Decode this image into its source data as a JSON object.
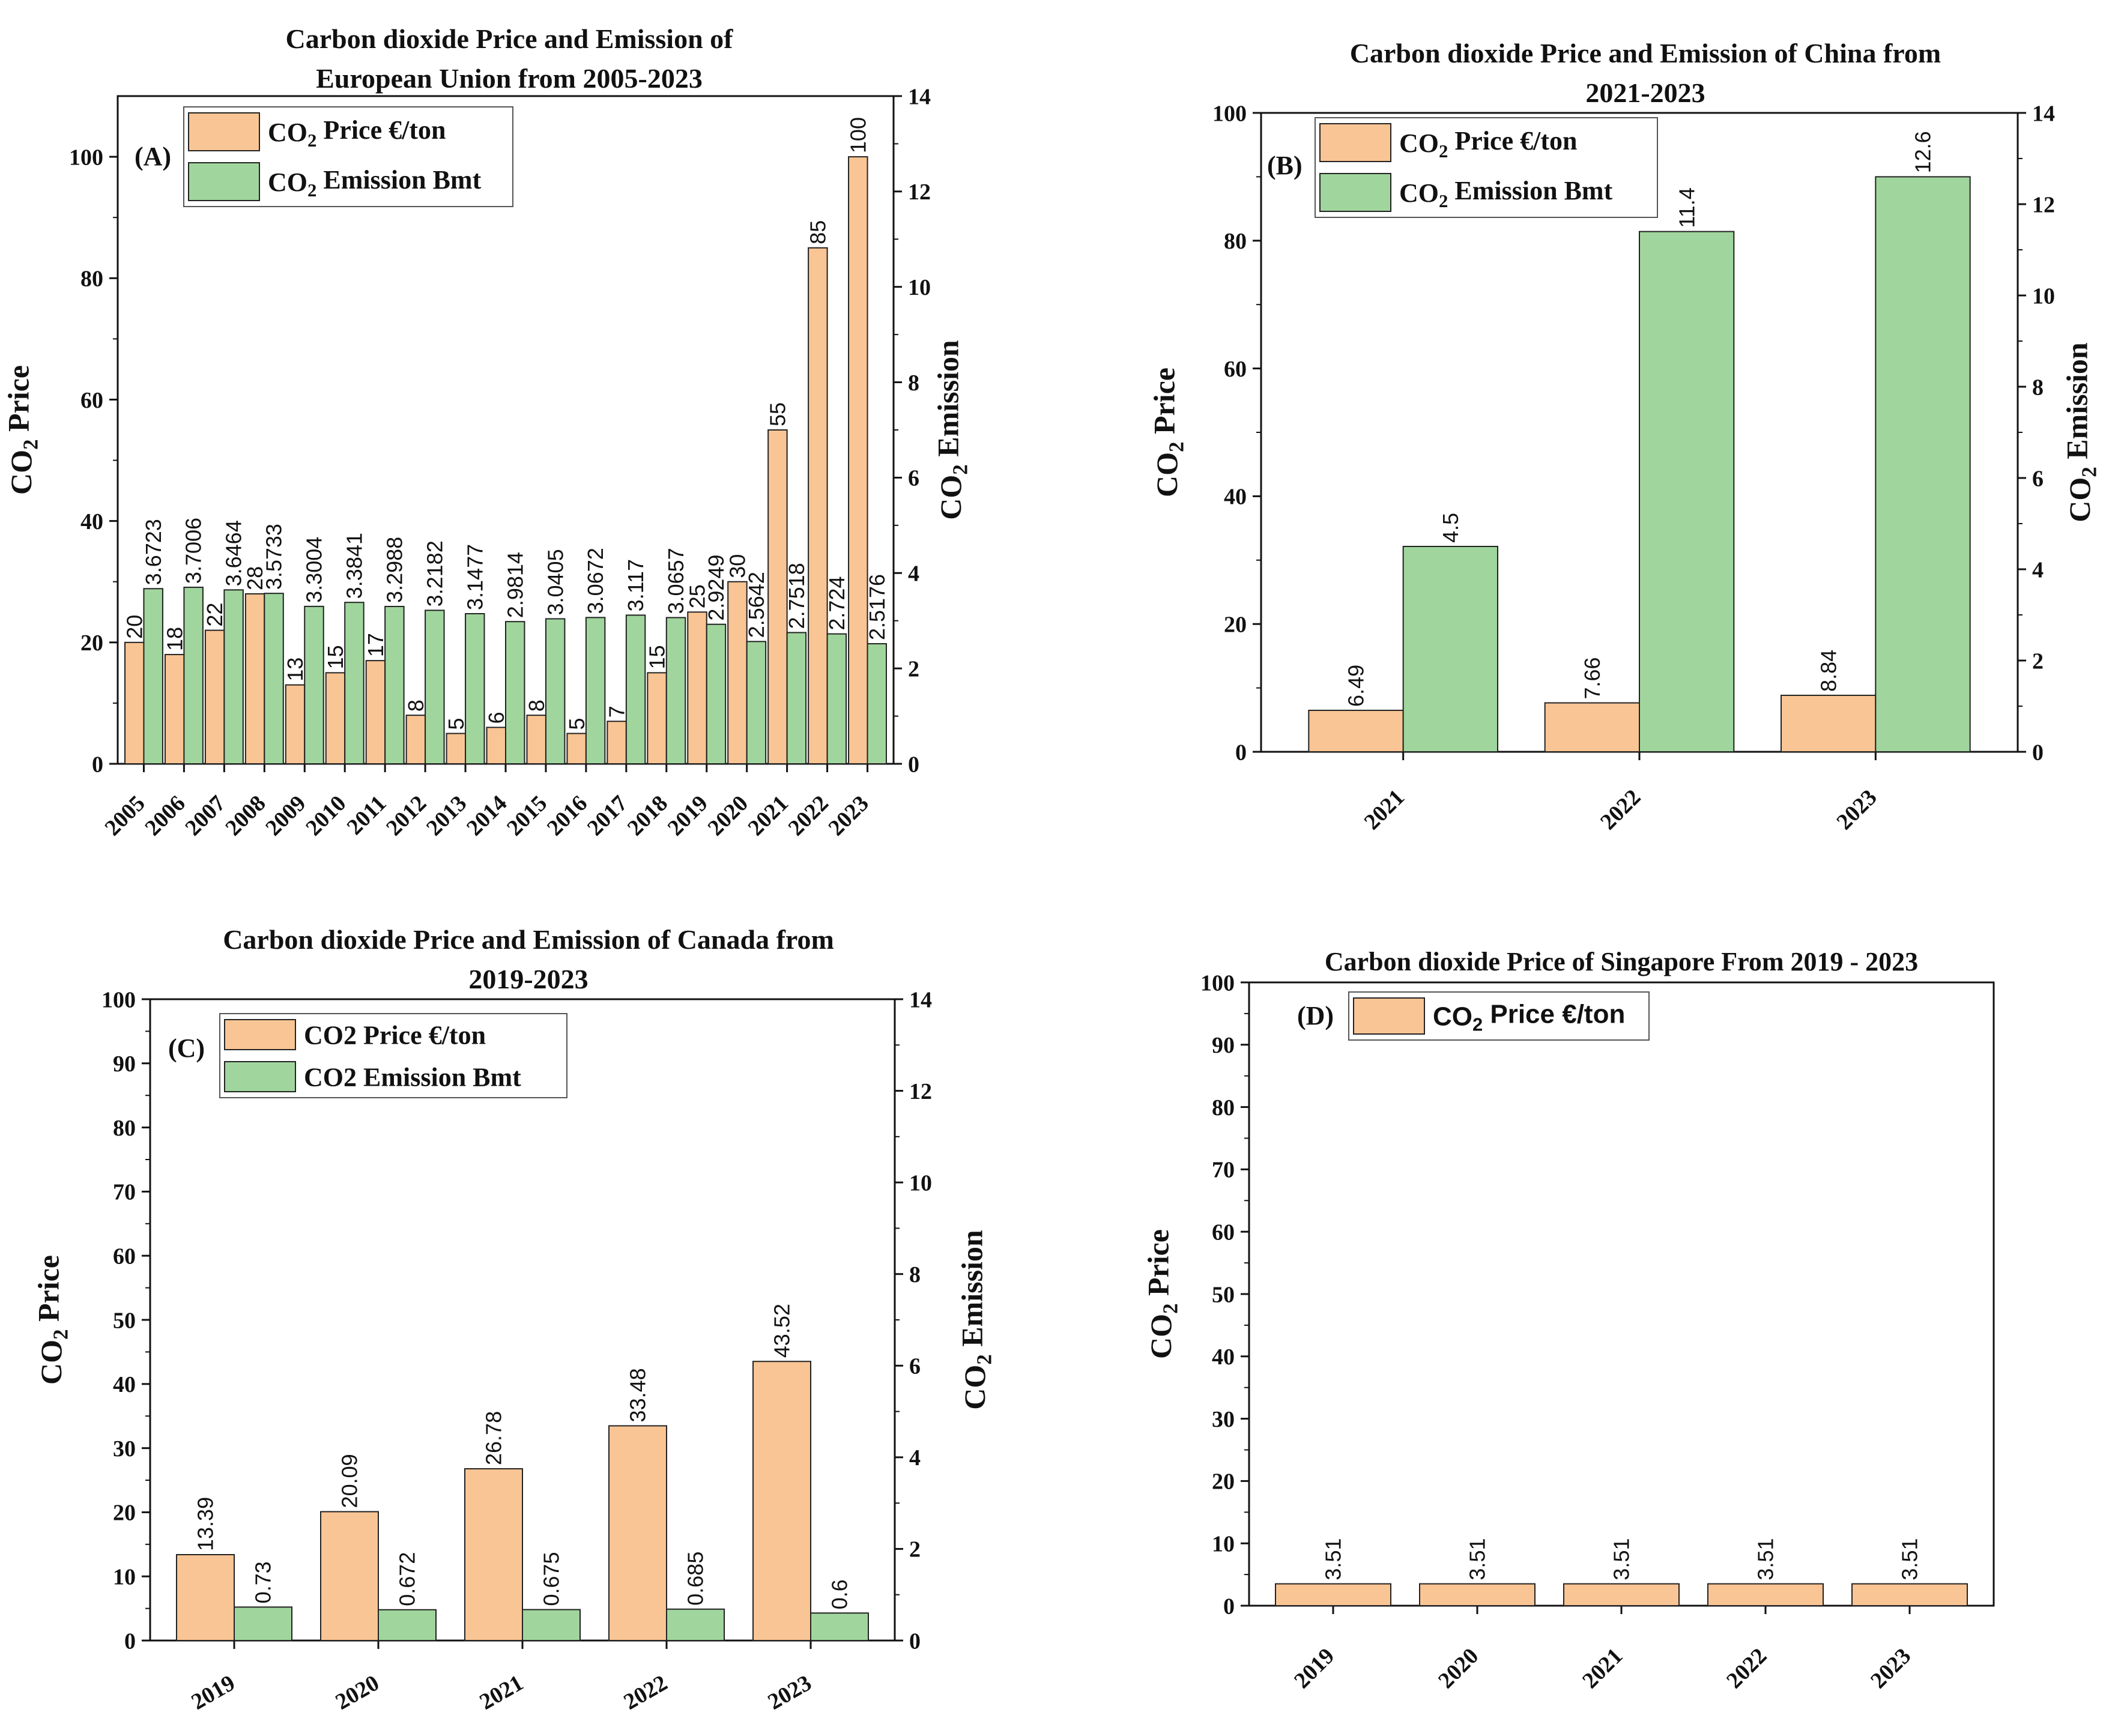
{
  "colors": {
    "price": "#F9C594",
    "emission": "#A0D69D",
    "stroke": "#222222"
  },
  "chart_data": [
    {
      "id": "A",
      "type": "bar",
      "panel_letter": "(A)",
      "title": [
        "Carbon dioxide Price and Emission of",
        "European Union from 2005-2023"
      ],
      "categories": [
        "2005",
        "2006",
        "2007",
        "2008",
        "2009",
        "2010",
        "2011",
        "2012",
        "2013",
        "2014",
        "2015",
        "2016",
        "2017",
        "2018",
        "2019",
        "2020",
        "2021",
        "2022",
        "2023"
      ],
      "series": [
        {
          "name": "CO₂ Price €/ton",
          "axis": "left",
          "values": [
            20,
            18,
            22,
            28,
            13,
            15,
            17,
            8,
            5,
            6,
            8,
            5,
            7,
            15,
            25,
            30,
            55,
            85,
            100
          ]
        },
        {
          "name": "CO₂ Emission Bmt",
          "axis": "right",
          "values": [
            3.6723,
            3.7006,
            3.6464,
            3.5733,
            3.3004,
            3.3841,
            3.2988,
            3.2182,
            3.1477,
            2.9814,
            3.0405,
            3.0672,
            3.117,
            3.0657,
            2.9249,
            2.5642,
            2.7518,
            2.724,
            2.5176
          ]
        }
      ],
      "ylabel": "CO₂ Price",
      "y2label": "CO₂ Emission",
      "ylim": [
        0,
        110
      ],
      "yticks": [
        0,
        20,
        40,
        60,
        80,
        100
      ],
      "y2lim": [
        0,
        14
      ],
      "y2ticks": [
        0,
        2,
        4,
        6,
        8,
        10,
        12,
        14
      ]
    },
    {
      "id": "B",
      "type": "bar",
      "panel_letter": "(B)",
      "title": [
        "Carbon dioxide Price and Emission of China from",
        "2021-2023"
      ],
      "categories": [
        "2021",
        "2022",
        "2023"
      ],
      "series": [
        {
          "name": "CO₂ Price €/ton",
          "axis": "left",
          "values": [
            6.49,
            7.66,
            8.84
          ]
        },
        {
          "name": "CO₂ Emission Bmt",
          "axis": "right",
          "values": [
            4.5,
            11.4,
            12.6
          ]
        }
      ],
      "ylabel": "CO₂ Price",
      "y2label": "CO₂ Emission",
      "ylim": [
        0,
        100
      ],
      "yticks": [
        0,
        20,
        40,
        60,
        80,
        100
      ],
      "y2lim": [
        0,
        14
      ],
      "y2ticks": [
        0,
        2,
        4,
        6,
        8,
        10,
        12,
        14
      ]
    },
    {
      "id": "C",
      "type": "bar",
      "panel_letter": "(C)",
      "title": [
        "Carbon dioxide Price and Emission of Canada from",
        "2019-2023"
      ],
      "categories": [
        "2019",
        "2020",
        "2021",
        "2022",
        "2023"
      ],
      "series": [
        {
          "name": "CO2 Price €/ton",
          "axis": "left",
          "values": [
            13.39,
            20.09,
            26.78,
            33.48,
            43.52
          ]
        },
        {
          "name": "CO2 Emission Bmt",
          "axis": "right",
          "values": [
            0.73,
            0.672,
            0.675,
            0.685,
            0.6
          ]
        }
      ],
      "ylabel": "CO₂ Price",
      "y2label": "CO₂ Emission",
      "ylim": [
        0,
        100
      ],
      "yticks": [
        0,
        10,
        20,
        30,
        40,
        50,
        60,
        70,
        80,
        90,
        100
      ],
      "y2lim": [
        0,
        14
      ],
      "y2ticks": [
        0,
        2,
        4,
        6,
        8,
        10,
        12,
        14
      ]
    },
    {
      "id": "D",
      "type": "bar",
      "panel_letter": "(D)",
      "title": [
        "Carbon dioxide Price of Singapore From 2019 - 2023"
      ],
      "categories": [
        "2019",
        "2020",
        "2021",
        "2022",
        "2023"
      ],
      "series": [
        {
          "name": "CO₂ Price €/ton",
          "axis": "left",
          "values": [
            3.51,
            3.51,
            3.51,
            3.51,
            3.51
          ]
        }
      ],
      "ylabel": "CO₂ Price",
      "ylim": [
        0,
        100
      ],
      "yticks": [
        0,
        10,
        20,
        30,
        40,
        50,
        60,
        70,
        80,
        90,
        100
      ]
    }
  ]
}
